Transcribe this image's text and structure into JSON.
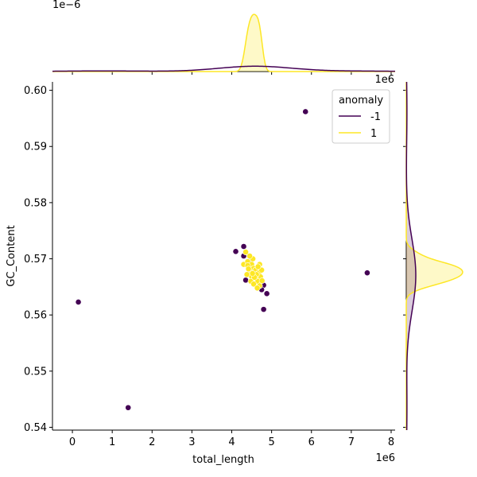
{
  "chart_data": {
    "type": "scatter",
    "title": "",
    "xlabel": "total_length",
    "ylabel": "GC_Content",
    "x_offset_label": "1e6",
    "top_marginal_offset_label": "1e−6",
    "right_marginal_offset_label": "1e6",
    "xlim": [
      -500000,
      8100000
    ],
    "ylim": [
      0.5395,
      0.6015
    ],
    "x_ticks": [
      0,
      1000000,
      2000000,
      3000000,
      4000000,
      5000000,
      6000000,
      7000000,
      8000000
    ],
    "x_tick_labels": [
      "0",
      "1",
      "2",
      "3",
      "4",
      "5",
      "6",
      "7",
      "8"
    ],
    "y_ticks": [
      0.54,
      0.55,
      0.56,
      0.57,
      0.58,
      0.59,
      0.6
    ],
    "y_tick_labels": [
      "0.54",
      "0.55",
      "0.56",
      "0.57",
      "0.58",
      "0.59",
      "0.60"
    ],
    "grid": false,
    "legend": {
      "title": "anomaly",
      "placement": "top-right",
      "entries": [
        {
          "label": "-1",
          "color": "#440154"
        },
        {
          "label": "1",
          "color": "#fde725"
        }
      ]
    },
    "series": [
      {
        "name": "-1",
        "color": "#440154",
        "points": [
          [
            5850000,
            0.5962
          ],
          [
            7400000,
            0.5675
          ],
          [
            150000,
            0.5623
          ],
          [
            1400000,
            0.5435
          ],
          [
            4800000,
            0.561
          ],
          [
            4100000,
            0.5713
          ],
          [
            4300000,
            0.5722
          ],
          [
            4350000,
            0.5662
          ],
          [
            4800000,
            0.5653
          ],
          [
            4880000,
            0.5638
          ],
          [
            4300000,
            0.5705
          ],
          [
            4500000,
            0.57
          ],
          [
            4700000,
            0.566
          ],
          [
            4600000,
            0.567
          ],
          [
            4750000,
            0.5645
          ],
          [
            4400000,
            0.569
          ],
          [
            4550000,
            0.568
          ],
          [
            4650000,
            0.5675
          ]
        ]
      },
      {
        "name": "1",
        "color": "#fde725",
        "points": [
          [
            4350000,
            0.5712
          ],
          [
            4300000,
            0.569
          ],
          [
            4400000,
            0.5695
          ],
          [
            4500000,
            0.569
          ],
          [
            4700000,
            0.569
          ],
          [
            4550000,
            0.5683
          ],
          [
            4600000,
            0.568
          ],
          [
            4450000,
            0.5678
          ],
          [
            4680000,
            0.5675
          ],
          [
            4380000,
            0.5672
          ],
          [
            4500000,
            0.5668
          ],
          [
            4720000,
            0.5668
          ],
          [
            4600000,
            0.5665
          ],
          [
            4480000,
            0.566
          ],
          [
            4650000,
            0.566
          ],
          [
            4550000,
            0.5655
          ],
          [
            4700000,
            0.5652
          ],
          [
            4400000,
            0.5688
          ],
          [
            4750000,
            0.568
          ],
          [
            4620000,
            0.5672
          ],
          [
            4530000,
            0.57
          ],
          [
            4450000,
            0.5705
          ],
          [
            4660000,
            0.5686
          ],
          [
            4570000,
            0.5667
          ],
          [
            4420000,
            0.5682
          ],
          [
            4760000,
            0.5661
          ],
          [
            4640000,
            0.5648
          ],
          [
            4520000,
            0.5674
          ]
        ]
      }
    ]
  }
}
